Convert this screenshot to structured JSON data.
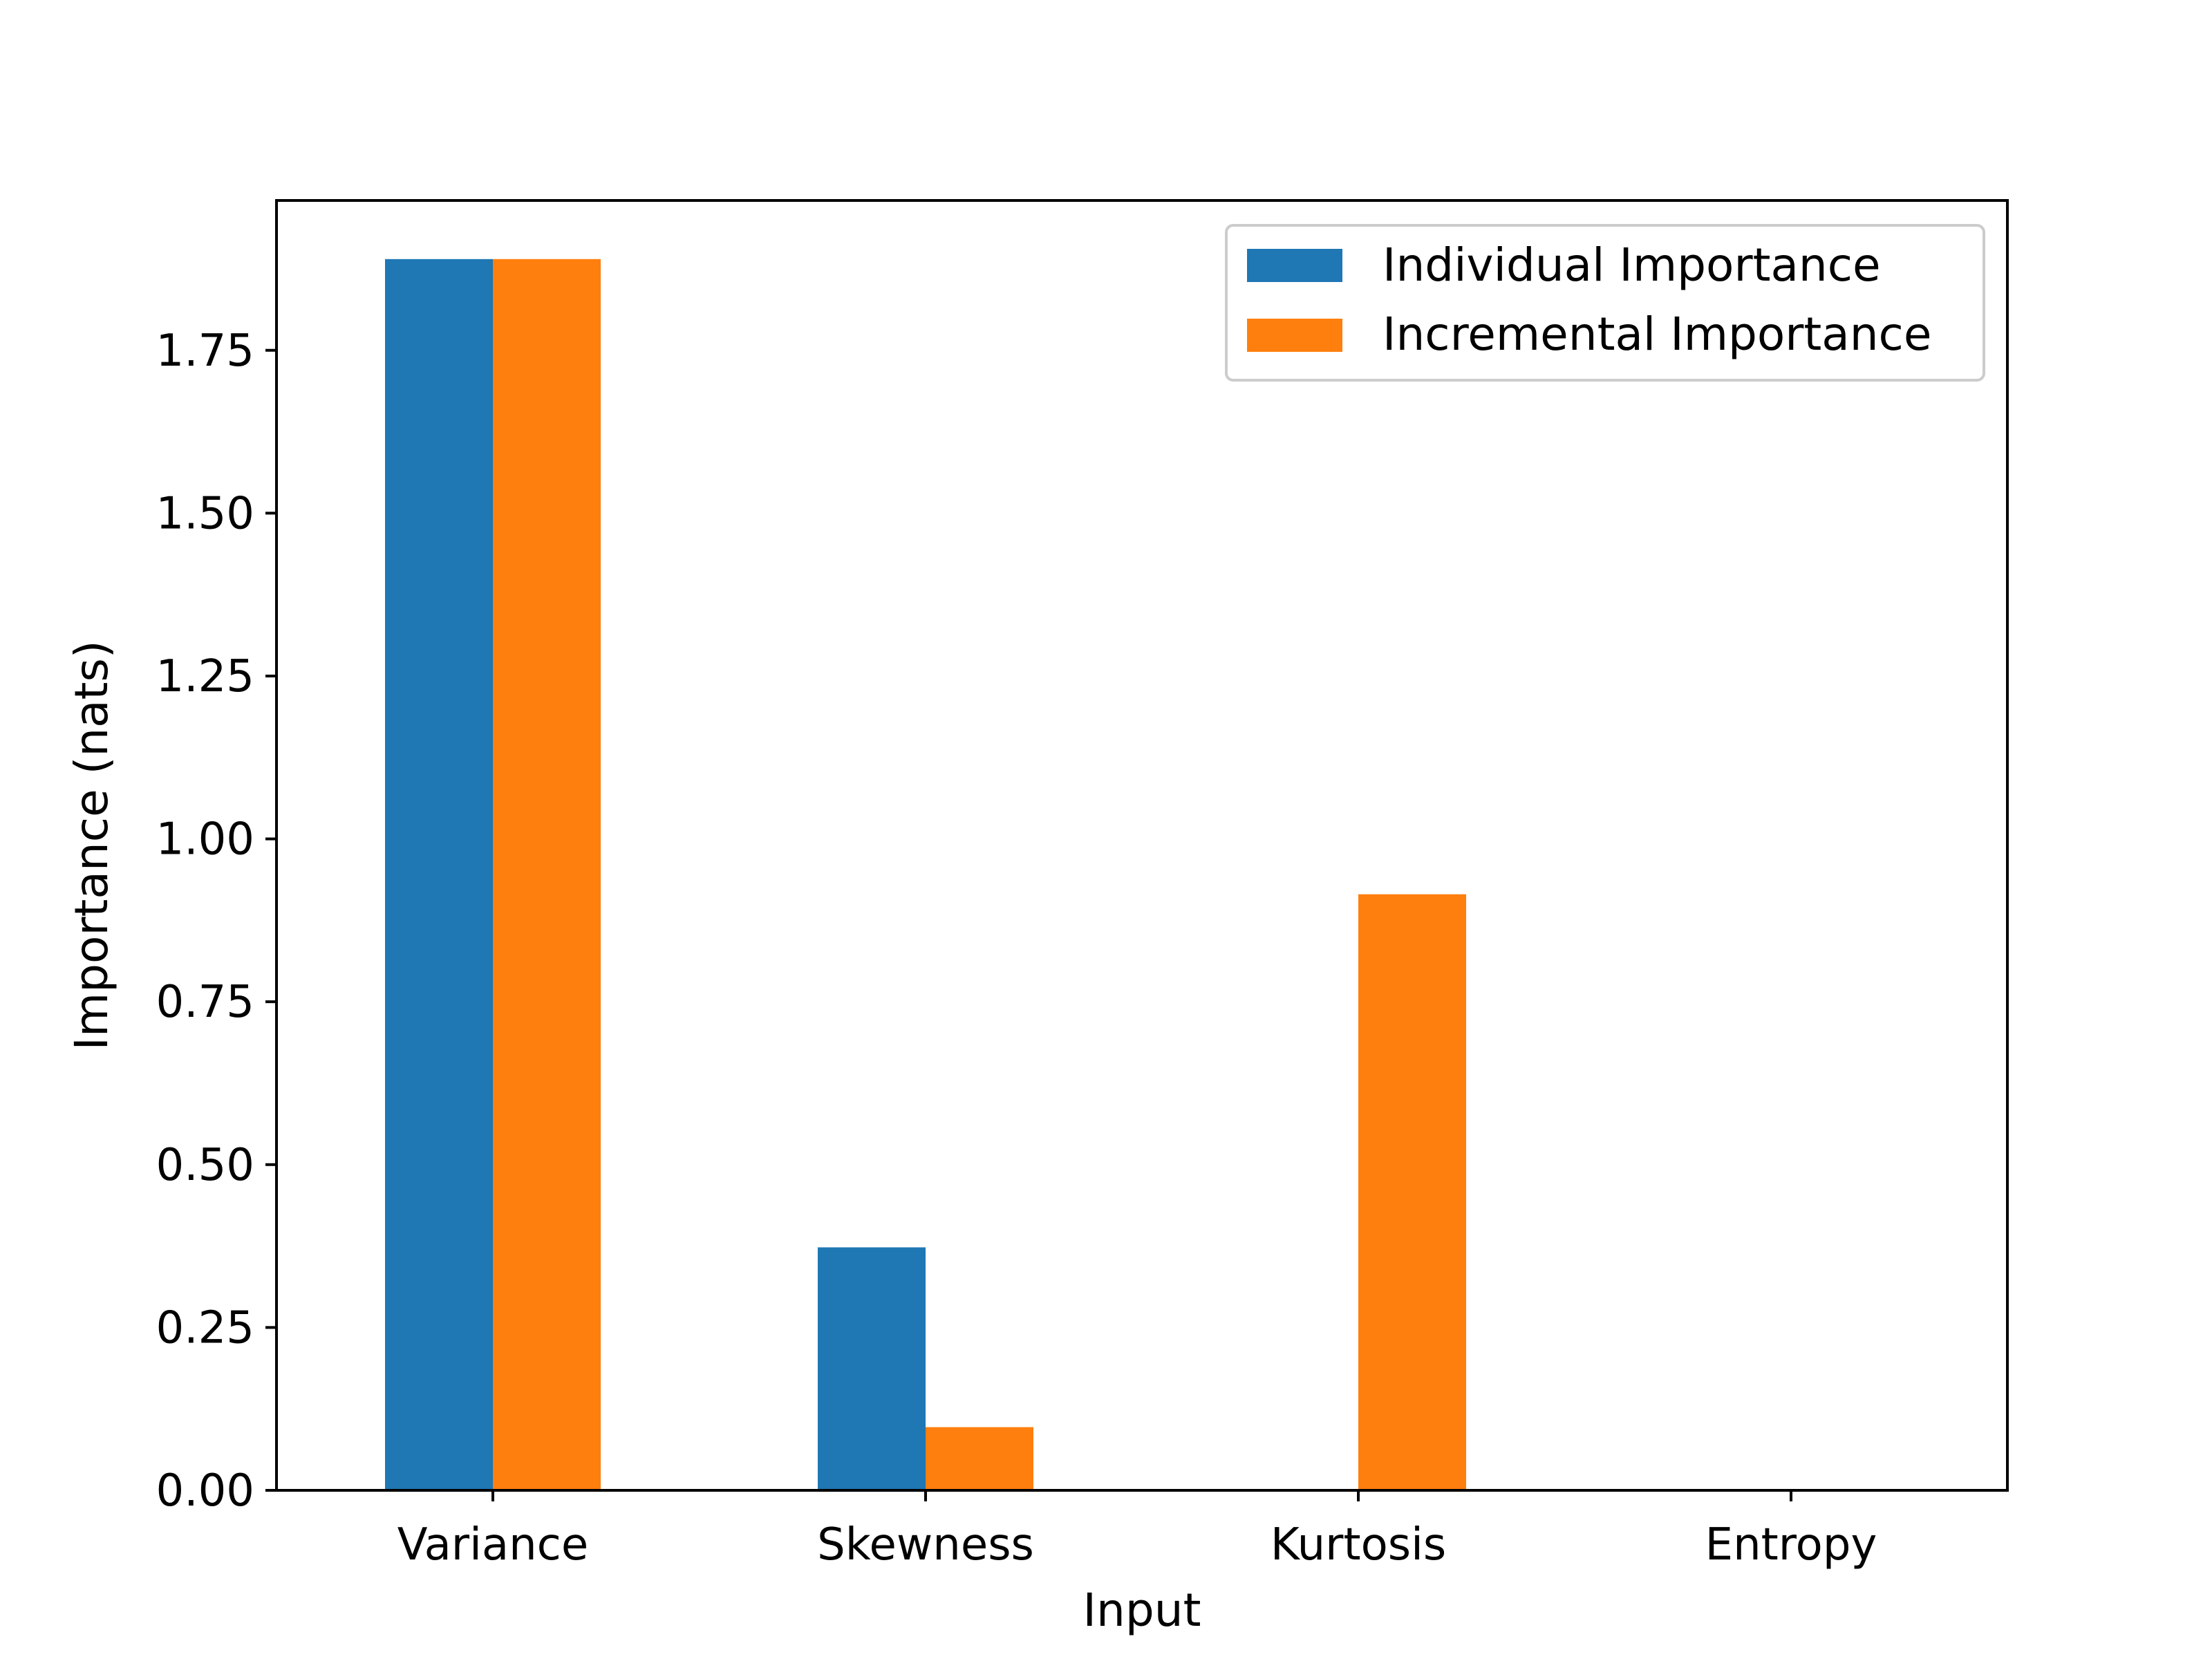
{
  "chart_data": {
    "type": "bar",
    "title": "",
    "xlabel": "Input",
    "ylabel": "Importance (nats)",
    "categories": [
      "Variance",
      "Skewness",
      "Kurtosis",
      "Entropy"
    ],
    "series": [
      {
        "name": "Individual Importance",
        "color": "#1f77b4",
        "values": [
          1.89,
          0.373,
          0.0,
          0.0
        ]
      },
      {
        "name": "Incremental Importance",
        "color": "#ff7f0e",
        "values": [
          1.89,
          0.097,
          0.915,
          0.0
        ]
      }
    ],
    "ylim": [
      0,
      1.98
    ],
    "yticks": [
      0.0,
      0.25,
      0.5,
      0.75,
      1.0,
      1.25,
      1.5,
      1.75
    ],
    "ytick_labels": [
      "0.00",
      "0.25",
      "0.50",
      "0.75",
      "1.00",
      "1.25",
      "1.50",
      "1.75"
    ],
    "grid": false,
    "legend_position": "top-right"
  }
}
